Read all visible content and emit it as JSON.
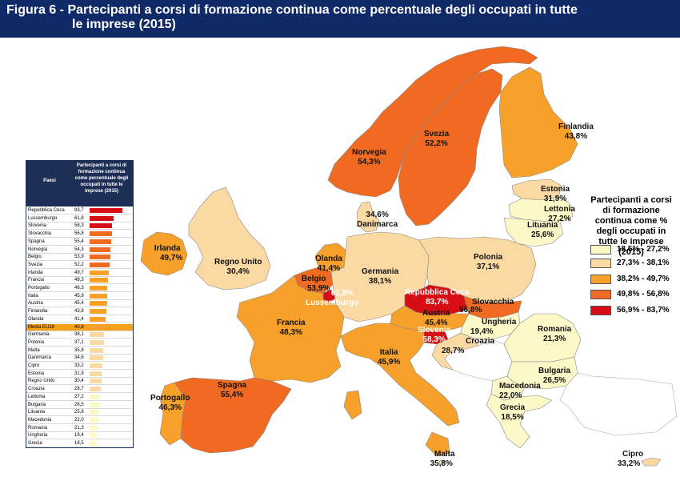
{
  "figure": {
    "title_line1": "Figura 6 - Partecipanti a corsi di formazione continua come percentuale degli occupati in tutte",
    "title_line2": "le imprese (2015)"
  },
  "colors": {
    "banner": "#0f2a66",
    "class1": "#fcf8c8",
    "class2": "#fbd9a3",
    "class3": "#f7a12a",
    "class4": "#f06b21",
    "class5": "#d70f14",
    "sea": "#ffffff",
    "non_eu": "#ffffff"
  },
  "legend": {
    "title": "Partecipanti a corsi di formazione continua come % degli occupati in tutte le imprese (2015)",
    "classes": [
      {
        "label": "18,5% - 27,2%",
        "color": "#fcf8c8"
      },
      {
        "label": "27,3% - 38,1%",
        "color": "#fbd9a3"
      },
      {
        "label": "38,2% - 49,7%",
        "color": "#f7a12a"
      },
      {
        "label": "49,8% - 56,8%",
        "color": "#f06b21"
      },
      {
        "label": "56,9% - 83,7%",
        "color": "#d70f14"
      }
    ]
  },
  "table": {
    "col_country": "Paesi",
    "col_value": "Partecipanti a corsi di formazione continua come percentuale degli occupati in tutte le imprese (2015)",
    "rows": [
      {
        "name": "Repubblica Ceca",
        "value": "83,7",
        "v": 83.7
      },
      {
        "name": "Lussemburgo",
        "value": "61,8",
        "v": 61.8
      },
      {
        "name": "Slovenia",
        "value": "58,3",
        "v": 58.3
      },
      {
        "name": "Slovacchia",
        "value": "56,8",
        "v": 56.8
      },
      {
        "name": "Spagna",
        "value": "55,4",
        "v": 55.4
      },
      {
        "name": "Norvegia",
        "value": "54,3",
        "v": 54.3
      },
      {
        "name": "Belgio",
        "value": "53,9",
        "v": 53.9
      },
      {
        "name": "Svezia",
        "value": "52,2",
        "v": 52.2
      },
      {
        "name": "Irlanda",
        "value": "49,7",
        "v": 49.7
      },
      {
        "name": "Francia",
        "value": "48,3",
        "v": 48.3
      },
      {
        "name": "Portogallo",
        "value": "46,3",
        "v": 46.3
      },
      {
        "name": "Italia",
        "value": "45,9",
        "v": 45.9
      },
      {
        "name": "Austria",
        "value": "45,4",
        "v": 45.4
      },
      {
        "name": "Finlandia",
        "value": "43,8",
        "v": 43.8
      },
      {
        "name": "Olanda",
        "value": "41,4",
        "v": 41.4
      },
      {
        "name": "Media EU28",
        "value": "40,8",
        "v": 40.8,
        "avg": true
      },
      {
        "name": "Germania",
        "value": "38,1",
        "v": 38.1
      },
      {
        "name": "Polonia",
        "value": "37,1",
        "v": 37.1
      },
      {
        "name": "Malta",
        "value": "35,8",
        "v": 35.8
      },
      {
        "name": "Danimarca",
        "value": "34,6",
        "v": 34.6
      },
      {
        "name": "Cipro",
        "value": "33,2",
        "v": 33.2
      },
      {
        "name": "Estonia",
        "value": "31,9",
        "v": 31.9
      },
      {
        "name": "Regno Unito",
        "value": "30,4",
        "v": 30.4
      },
      {
        "name": "Croazia",
        "value": "28,7",
        "v": 28.7
      },
      {
        "name": "Lettonia",
        "value": "27,2",
        "v": 27.2
      },
      {
        "name": "Bulgaria",
        "value": "26,5",
        "v": 26.5
      },
      {
        "name": "Lituania",
        "value": "25,6",
        "v": 25.6
      },
      {
        "name": "Macedonia",
        "value": "22,0",
        "v": 22.0
      },
      {
        "name": "Romania",
        "value": "21,3",
        "v": 21.3
      },
      {
        "name": "Ungheria",
        "value": "19,4",
        "v": 19.4
      },
      {
        "name": "Grecia",
        "value": "18,5",
        "v": 18.5
      }
    ]
  },
  "map_labels": {
    "norvegia": {
      "name": "Norvegia",
      "value": "54,3%"
    },
    "svezia": {
      "name": "Svezia",
      "value": "52,2%"
    },
    "finlandia": {
      "name": "Finlandia",
      "value": "43,8%"
    },
    "estonia": {
      "name": "Estonia",
      "value": "31,9%"
    },
    "lettonia": {
      "name": "Lettonia",
      "value": "27,2%"
    },
    "lituania": {
      "name": "Lituania",
      "value": "25,6%"
    },
    "danimarca": {
      "name": "Danimarca",
      "value": "34,6%"
    },
    "irlanda": {
      "name": "Irlanda",
      "value": "49,7%"
    },
    "regno_unito": {
      "name": "Regno Unito",
      "value": "30,4%"
    },
    "olanda": {
      "name": "Olanda",
      "value": "41,4%"
    },
    "belgio": {
      "name": "Belgio",
      "value": "53,9%"
    },
    "lussemburgo": {
      "name": "Lussemburgo",
      "value": "61,8%"
    },
    "germania": {
      "name": "Germania",
      "value": "38,1%"
    },
    "polonia": {
      "name": "Polonia",
      "value": "37,1%"
    },
    "rep_ceca": {
      "name": "Repubblica Ceca",
      "value": "83,7%"
    },
    "slovacchia": {
      "name": "Slovacchia",
      "value": "56,8%"
    },
    "austria": {
      "name": "Austria",
      "value": "45,4%"
    },
    "ungheria": {
      "name": "Ungheria",
      "value": "19,4%"
    },
    "slovenia": {
      "name": "Slovenia",
      "value": "58,3%"
    },
    "croazia": {
      "name": "Croazia",
      "value": "28,7%"
    },
    "romania": {
      "name": "Romania",
      "value": "21,3%"
    },
    "bulgaria": {
      "name": "Bulgaria",
      "value": "26,5%"
    },
    "macedonia": {
      "name": "Macedonia",
      "value": "22,0%"
    },
    "grecia": {
      "name": "Grecia",
      "value": "18,5%"
    },
    "francia": {
      "name": "Francia",
      "value": "48,3%"
    },
    "spagna": {
      "name": "Spagna",
      "value": "55,4%"
    },
    "portogallo": {
      "name": "Portogallo",
      "value": "46,3%"
    },
    "italia": {
      "name": "Italia",
      "value": "45,9%"
    },
    "malta": {
      "name": "Malta",
      "value": "35,8%"
    },
    "cipro": {
      "name": "Cipro",
      "value": "33,2%"
    }
  }
}
